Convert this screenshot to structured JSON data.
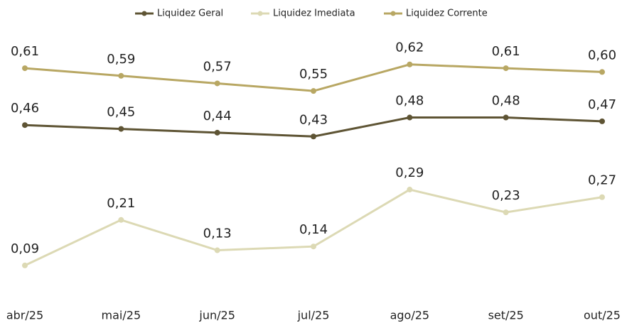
{
  "chart_data": {
    "type": "line",
    "categories": [
      "abr/25",
      "mai/25",
      "jun/25",
      "jul/25",
      "ago/25",
      "set/25",
      "out/25"
    ],
    "series": [
      {
        "name": "Liquidez Geral",
        "color": "#5e5434",
        "values": [
          0.46,
          0.45,
          0.44,
          0.43,
          0.48,
          0.48,
          0.47
        ],
        "value_labels": [
          "0,46",
          "0,45",
          "0,44",
          "0,43",
          "0,48",
          "0,48",
          "0,47"
        ]
      },
      {
        "name": "Liquidez Imediata",
        "color": "#dcd9b4",
        "values": [
          0.09,
          0.21,
          0.13,
          0.14,
          0.29,
          0.23,
          0.27
        ],
        "value_labels": [
          "0,09",
          "0,21",
          "0,13",
          "0,14",
          "0,29",
          "0,23",
          "0,27"
        ]
      },
      {
        "name": "Liquidez Corrente",
        "color": "#b8a763",
        "values": [
          0.61,
          0.59,
          0.57,
          0.55,
          0.62,
          0.61,
          0.6
        ],
        "value_labels": [
          "0,61",
          "0,59",
          "0,57",
          "0,55",
          "0,62",
          "0,61",
          "0,60"
        ]
      }
    ],
    "ylim": [
      0,
      0.7
    ],
    "grid": false,
    "legend": "top"
  }
}
